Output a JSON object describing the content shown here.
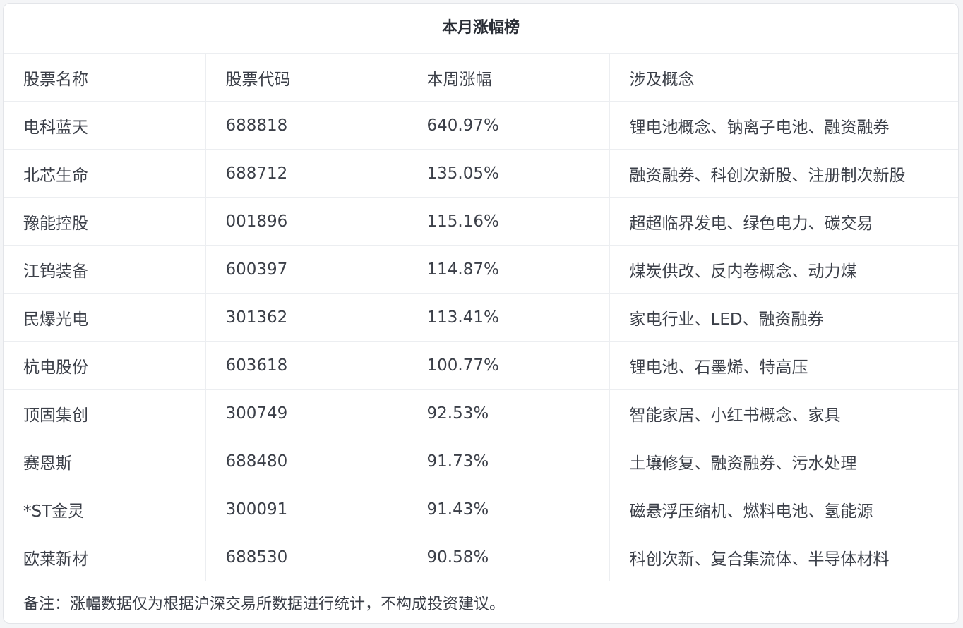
{
  "title": "本月涨幅榜",
  "headers": [
    "股票名称",
    "股票代码",
    "本周涨幅",
    "涉及概念"
  ],
  "rows": [
    [
      "电科蓝天",
      "688818",
      "640.97%",
      "锂电池概念、钠离子电池、融资融券"
    ],
    [
      "北芯生命",
      "688712",
      "135.05%",
      "融资融券、科创次新股、注册制次新股"
    ],
    [
      "豫能控股",
      "001896",
      "115.16%",
      "超超临界发电、绿色电力、碳交易"
    ],
    [
      "江钨装备",
      "600397",
      "114.87%",
      "煤炭供改、反内卷概念、动力煤"
    ],
    [
      "民爆光电",
      "301362",
      "113.41%",
      "家电行业、LED、融资融券"
    ],
    [
      "杭电股份",
      "603618",
      "100.77%",
      "锂电池、石墨烯、特高压"
    ],
    [
      "顶固集创",
      "300749",
      "92.53%",
      "智能家居、小红书概念、家具"
    ],
    [
      "赛恩斯",
      "688480",
      "91.73%",
      "土壤修复、融资融券、污水处理"
    ],
    [
      "*ST金灵",
      "300091",
      "91.43%",
      "磁悬浮压缩机、燃料电池、氢能源"
    ],
    [
      "欧莱新材",
      "688530",
      "90.58%",
      "科创次新、复合集流体、半导体材料"
    ]
  ],
  "footer": "备注：涨幅数据仅为根据沪深交易所数据进行统计，不构成投资建议。"
}
